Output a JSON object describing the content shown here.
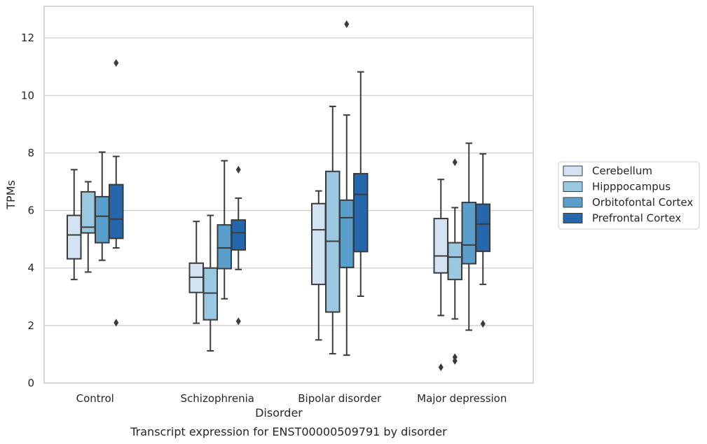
{
  "chart_data": {
    "type": "box",
    "xlabel": "Disorder",
    "ylabel": "TPMs",
    "caption": "Transcript expression for ENST00000509791 by disorder",
    "ylim": [
      0,
      13.1
    ],
    "yticks": [
      "0",
      "2",
      "4",
      "6",
      "8",
      "10",
      "12"
    ],
    "grid": "horizontal",
    "legend_position": "right",
    "categories": [
      "Control",
      "Schizophrenia",
      "Bipolar disorder",
      "Major depression"
    ],
    "series": [
      {
        "name": "Cerebellum",
        "color": "#d3e3f3",
        "boxes": [
          {
            "whisker_low": 3.6,
            "q1": 4.32,
            "median": 5.15,
            "q3": 5.83,
            "whisker_high": 7.42,
            "outliers": []
          },
          {
            "whisker_low": 2.08,
            "q1": 3.15,
            "median": 3.68,
            "q3": 4.17,
            "whisker_high": 5.62,
            "outliers": []
          },
          {
            "whisker_low": 1.5,
            "q1": 3.43,
            "median": 5.33,
            "q3": 6.24,
            "whisker_high": 6.68,
            "outliers": []
          },
          {
            "whisker_low": 2.35,
            "q1": 3.83,
            "median": 4.42,
            "q3": 5.72,
            "whisker_high": 7.08,
            "outliers": [
              0.55
            ]
          }
        ]
      },
      {
        "name": "Hipppocampus",
        "color": "#9ac8e0",
        "boxes": [
          {
            "whisker_low": 3.86,
            "q1": 5.22,
            "median": 5.42,
            "q3": 6.65,
            "whisker_high": 7.0,
            "outliers": []
          },
          {
            "whisker_low": 1.12,
            "q1": 2.2,
            "median": 3.13,
            "q3": 4.0,
            "whisker_high": 5.83,
            "outliers": []
          },
          {
            "whisker_low": 1.02,
            "q1": 2.47,
            "median": 4.93,
            "q3": 7.36,
            "whisker_high": 9.62,
            "outliers": []
          },
          {
            "whisker_low": 2.23,
            "q1": 3.6,
            "median": 4.38,
            "q3": 4.88,
            "whisker_high": 6.1,
            "outliers": [
              0.9,
              0.77,
              7.68
            ]
          }
        ]
      },
      {
        "name": "Orbitofontal Cortex",
        "color": "#5a9fcb",
        "boxes": [
          {
            "whisker_low": 4.27,
            "q1": 4.88,
            "median": 5.8,
            "q3": 6.48,
            "whisker_high": 8.03,
            "outliers": []
          },
          {
            "whisker_low": 2.93,
            "q1": 3.98,
            "median": 4.7,
            "q3": 5.5,
            "whisker_high": 7.73,
            "outliers": []
          },
          {
            "whisker_low": 0.97,
            "q1": 4.02,
            "median": 5.75,
            "q3": 6.36,
            "whisker_high": 9.32,
            "outliers": [
              12.48
            ]
          },
          {
            "whisker_low": 1.84,
            "q1": 4.15,
            "median": 4.8,
            "q3": 6.28,
            "whisker_high": 8.34,
            "outliers": []
          }
        ]
      },
      {
        "name": "Prefrontal Cortex",
        "color": "#2567ad",
        "boxes": [
          {
            "whisker_low": 4.7,
            "q1": 5.03,
            "median": 5.7,
            "q3": 6.9,
            "whisker_high": 7.88,
            "outliers": [
              11.13,
              2.1
            ]
          },
          {
            "whisker_low": 3.95,
            "q1": 4.63,
            "median": 5.23,
            "q3": 5.67,
            "whisker_high": 6.43,
            "outliers": [
              7.42,
              2.15
            ]
          },
          {
            "whisker_low": 3.02,
            "q1": 4.57,
            "median": 6.56,
            "q3": 7.28,
            "whisker_high": 10.82,
            "outliers": []
          },
          {
            "whisker_low": 3.43,
            "q1": 4.58,
            "median": 5.53,
            "q3": 6.22,
            "whisker_high": 7.97,
            "outliers": [
              2.06
            ]
          }
        ]
      }
    ]
  }
}
